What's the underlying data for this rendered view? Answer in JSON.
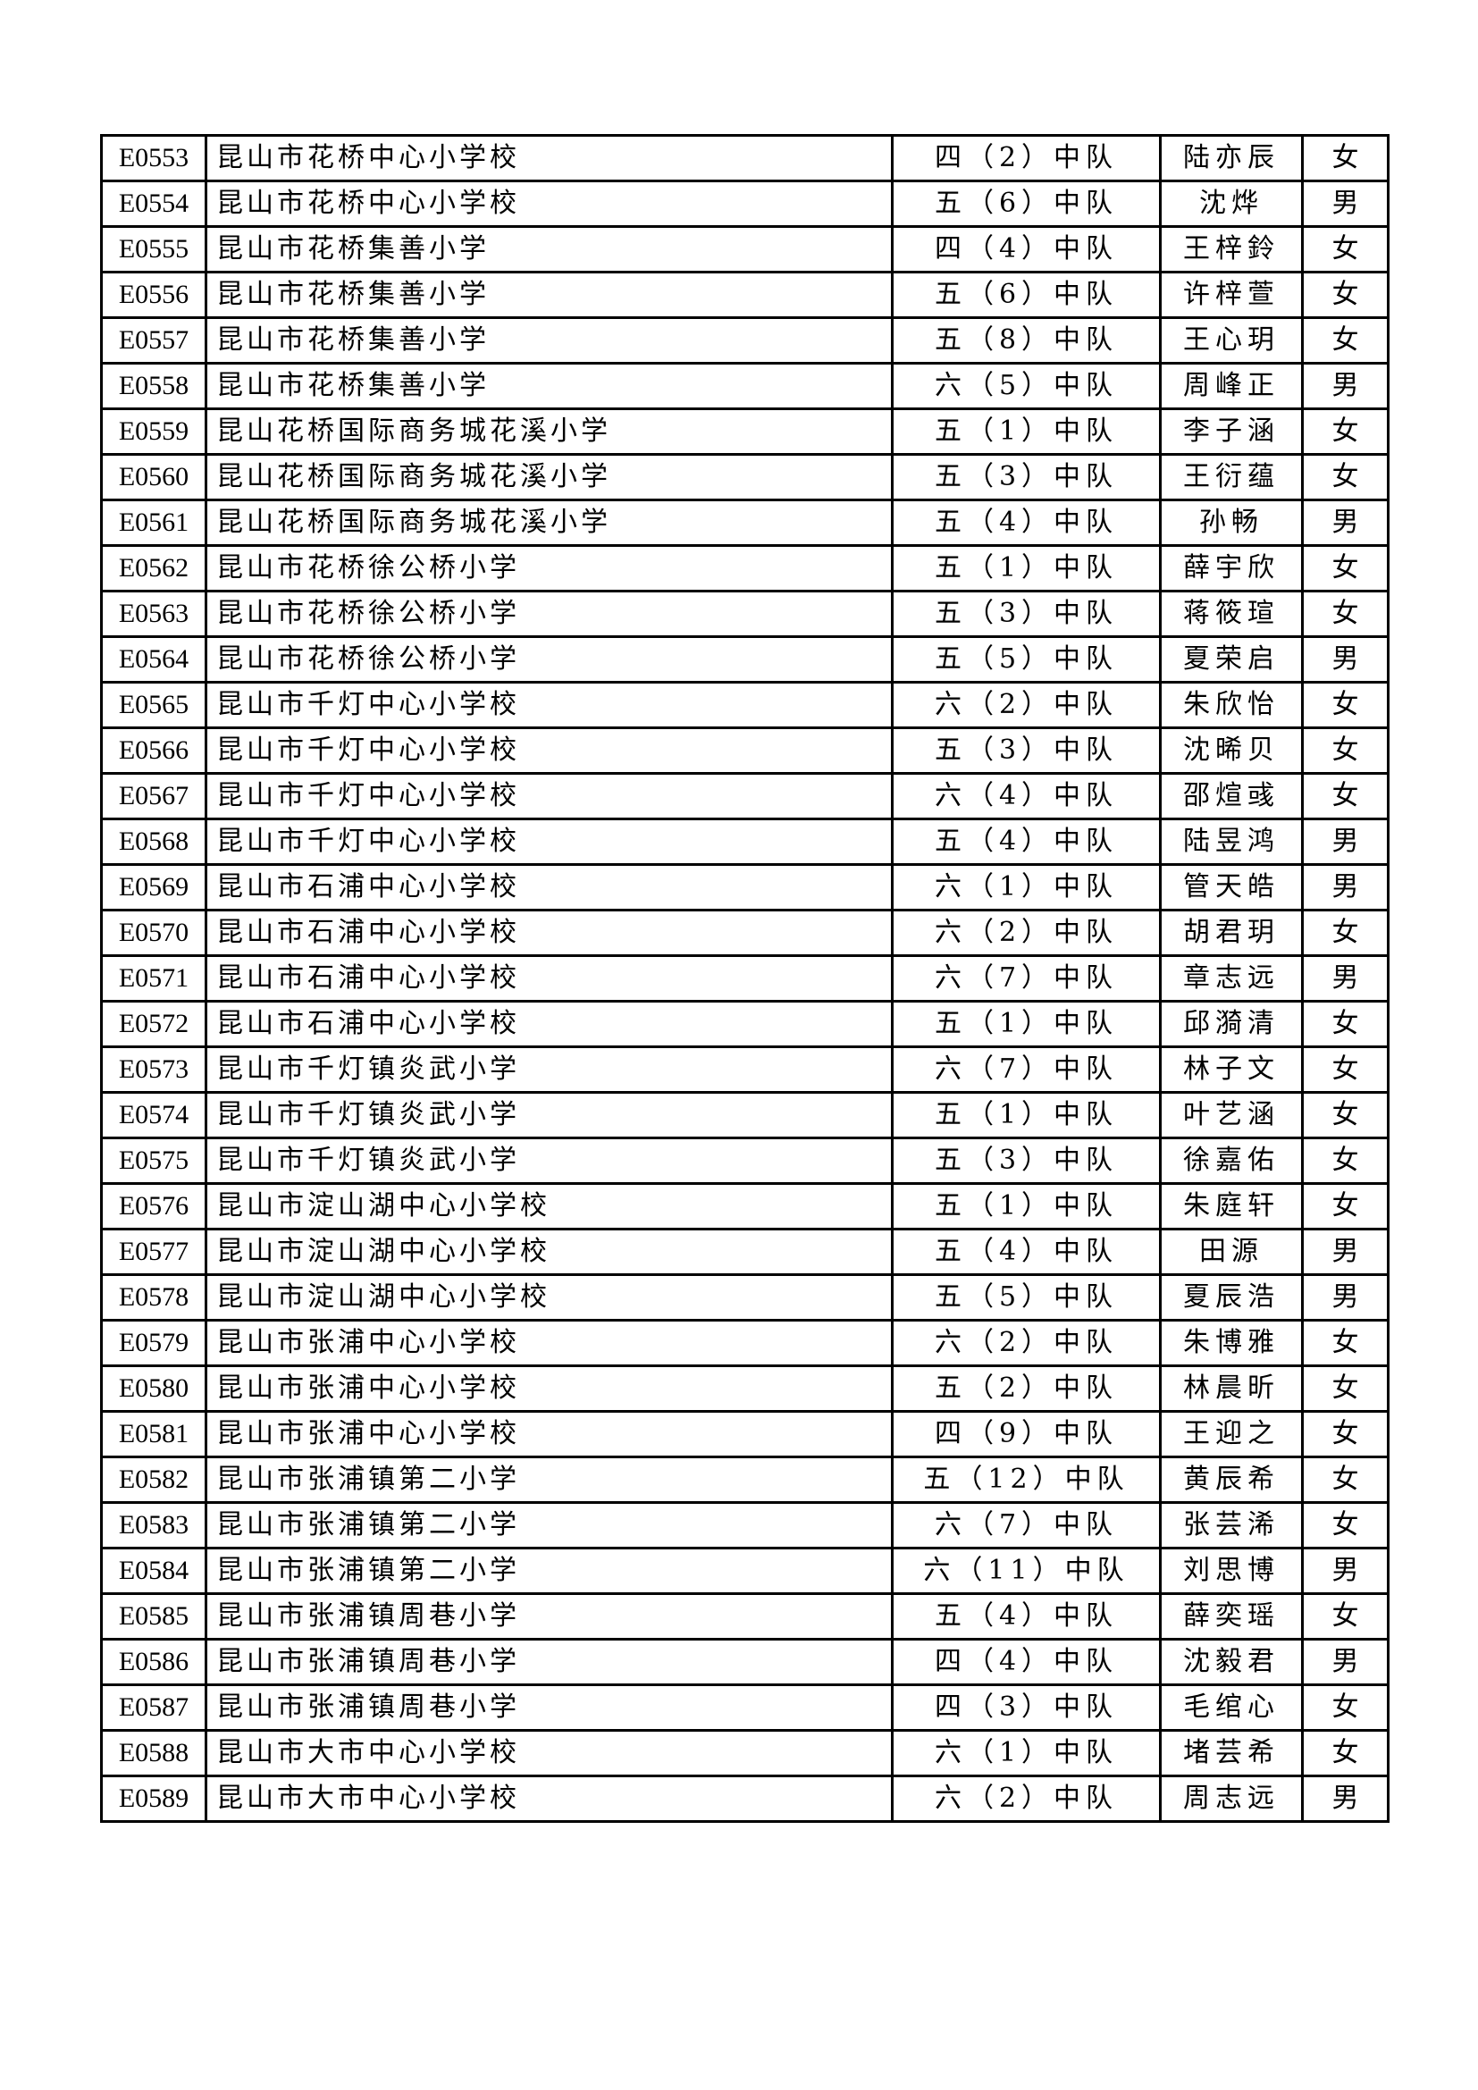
{
  "table": {
    "rows": [
      [
        "E0553",
        "昆山市花桥中心小学校",
        "四（2）中队",
        "陆亦辰",
        "女"
      ],
      [
        "E0554",
        "昆山市花桥中心小学校",
        "五（6）中队",
        "沈烨",
        "男"
      ],
      [
        "E0555",
        "昆山市花桥集善小学",
        "四（4）中队",
        "王梓鈴",
        "女"
      ],
      [
        "E0556",
        "昆山市花桥集善小学",
        "五（6）中队",
        "许梓萱",
        "女"
      ],
      [
        "E0557",
        "昆山市花桥集善小学",
        "五（8）中队",
        "王心玥",
        "女"
      ],
      [
        "E0558",
        "昆山市花桥集善小学",
        "六（5）中队",
        "周峰正",
        "男"
      ],
      [
        "E0559",
        "昆山花桥国际商务城花溪小学",
        "五（1）中队",
        "李子涵",
        "女"
      ],
      [
        "E0560",
        "昆山花桥国际商务城花溪小学",
        "五（3）中队",
        "王衍蕴",
        "女"
      ],
      [
        "E0561",
        "昆山花桥国际商务城花溪小学",
        "五（4）中队",
        "孙畅",
        "男"
      ],
      [
        "E0562",
        "昆山市花桥徐公桥小学",
        "五（1）中队",
        "薛宇欣",
        "女"
      ],
      [
        "E0563",
        "昆山市花桥徐公桥小学",
        "五（3）中队",
        "蒋筱瑄",
        "女"
      ],
      [
        "E0564",
        "昆山市花桥徐公桥小学",
        "五（5）中队",
        "夏荣启",
        "男"
      ],
      [
        "E0565",
        "昆山市千灯中心小学校",
        "六（2）中队",
        "朱欣怡",
        "女"
      ],
      [
        "E0566",
        "昆山市千灯中心小学校",
        "五（3）中队",
        "沈晞贝",
        "女"
      ],
      [
        "E0567",
        "昆山市千灯中心小学校",
        "六（4）中队",
        "邵煊彧",
        "女"
      ],
      [
        "E0568",
        "昆山市千灯中心小学校",
        "五（4）中队",
        "陆昱鸿",
        "男"
      ],
      [
        "E0569",
        "昆山市石浦中心小学校",
        "六（1）中队",
        "管天皓",
        "男"
      ],
      [
        "E0570",
        "昆山市石浦中心小学校",
        "六（2）中队",
        "胡君玥",
        "女"
      ],
      [
        "E0571",
        "昆山市石浦中心小学校",
        "六（7）中队",
        "章志远",
        "男"
      ],
      [
        "E0572",
        "昆山市石浦中心小学校",
        "五（1）中队",
        "邱漪清",
        "女"
      ],
      [
        "E0573",
        "昆山市千灯镇炎武小学",
        "六（7）中队",
        "林子文",
        "女"
      ],
      [
        "E0574",
        "昆山市千灯镇炎武小学",
        "五（1）中队",
        "叶艺涵",
        "女"
      ],
      [
        "E0575",
        "昆山市千灯镇炎武小学",
        "五（3）中队",
        "徐嘉佑",
        "女"
      ],
      [
        "E0576",
        "昆山市淀山湖中心小学校",
        "五（1）中队",
        "朱庭轩",
        "女"
      ],
      [
        "E0577",
        "昆山市淀山湖中心小学校",
        "五（4）中队",
        "田源",
        "男"
      ],
      [
        "E0578",
        "昆山市淀山湖中心小学校",
        "五（5）中队",
        "夏辰浩",
        "男"
      ],
      [
        "E0579",
        "昆山市张浦中心小学校",
        "六（2）中队",
        "朱博雅",
        "女"
      ],
      [
        "E0580",
        "昆山市张浦中心小学校",
        "五（2）中队",
        "林晨昕",
        "女"
      ],
      [
        "E0581",
        "昆山市张浦中心小学校",
        "四（9）中队",
        "王迎之",
        "女"
      ],
      [
        "E0582",
        "昆山市张浦镇第二小学",
        "五（12）中队",
        "黄辰希",
        "女"
      ],
      [
        "E0583",
        "昆山市张浦镇第二小学",
        "六（7）中队",
        "张芸浠",
        "女"
      ],
      [
        "E0584",
        "昆山市张浦镇第二小学",
        "六（11）中队",
        "刘思博",
        "男"
      ],
      [
        "E0585",
        "昆山市张浦镇周巷小学",
        "五（4）中队",
        "薛奕瑶",
        "女"
      ],
      [
        "E0586",
        "昆山市张浦镇周巷小学",
        "四（4）中队",
        "沈毅君",
        "男"
      ],
      [
        "E0587",
        "昆山市张浦镇周巷小学",
        "四（3）中队",
        "毛绾心",
        "女"
      ],
      [
        "E0588",
        "昆山市大市中心小学校",
        "六（1）中队",
        "堵芸希",
        "女"
      ],
      [
        "E0589",
        "昆山市大市中心小学校",
        "六（2）中队",
        "周志远",
        "男"
      ]
    ]
  }
}
